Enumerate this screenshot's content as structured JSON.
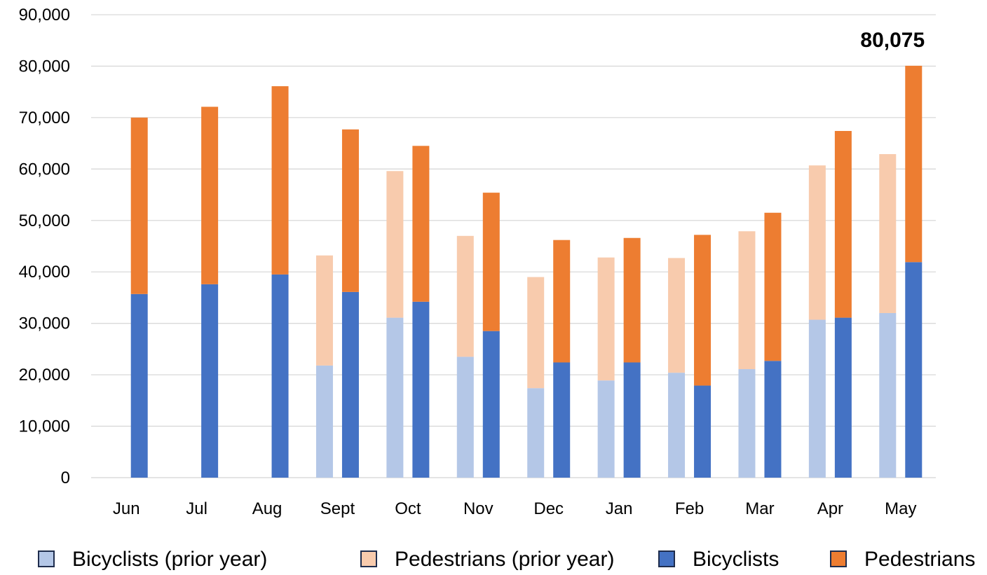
{
  "chart_data": {
    "type": "bar",
    "stacked": true,
    "title": "",
    "xlabel": "",
    "ylabel": "",
    "ylim": [
      0,
      90000
    ],
    "y_ticks": [
      0,
      10000,
      20000,
      30000,
      40000,
      50000,
      60000,
      70000,
      80000,
      90000
    ],
    "y_tick_labels": [
      "0",
      "10,000",
      "20,000",
      "30,000",
      "40,000",
      "50,000",
      "60,000",
      "70,000",
      "80,000",
      "90,000"
    ],
    "grid": "horizontal",
    "legend_position": "bottom",
    "categories": [
      "Jun",
      "Jul",
      "Aug",
      "Sept",
      "Oct",
      "Nov",
      "Dec",
      "Jan",
      "Feb",
      "Mar",
      "Apr",
      "May"
    ],
    "stacks": [
      {
        "name": "prior year",
        "series": [
          {
            "name": "Bicyclists (prior year)",
            "color": "#b4c7e7",
            "values": [
              null,
              null,
              null,
              21800,
              31100,
              23500,
              17400,
              18900,
              20400,
              21100,
              30700,
              32000
            ]
          },
          {
            "name": "Pedestrians (prior year)",
            "color": "#f8cbad",
            "values": [
              null,
              null,
              null,
              21400,
              28500,
              23500,
              21600,
              23900,
              22300,
              26800,
              30000,
              30900
            ]
          }
        ]
      },
      {
        "name": "current year",
        "series": [
          {
            "name": "Bicyclists",
            "color": "#4472c4",
            "values": [
              35700,
              37600,
              39500,
              36100,
              34200,
              28500,
              22400,
              22400,
              17900,
              22700,
              31100,
              41900
            ]
          },
          {
            "name": "Pedestrians",
            "color": "#ed7d31",
            "values": [
              34300,
              34500,
              36600,
              31600,
              30300,
              26900,
              23800,
              24200,
              29300,
              28800,
              36300,
              38175
            ]
          }
        ]
      }
    ],
    "annotations": [
      {
        "text": "80,075",
        "category": "May",
        "stack": "current year"
      }
    ]
  },
  "legend": {
    "items": [
      {
        "label": "Bicyclists (prior year)",
        "color": "#b4c7e7"
      },
      {
        "label": "Pedestrians (prior year)",
        "color": "#f8cbad"
      },
      {
        "label": "Bicyclists",
        "color": "#4472c4"
      },
      {
        "label": "Pedestrians",
        "color": "#ed7d31"
      }
    ]
  }
}
